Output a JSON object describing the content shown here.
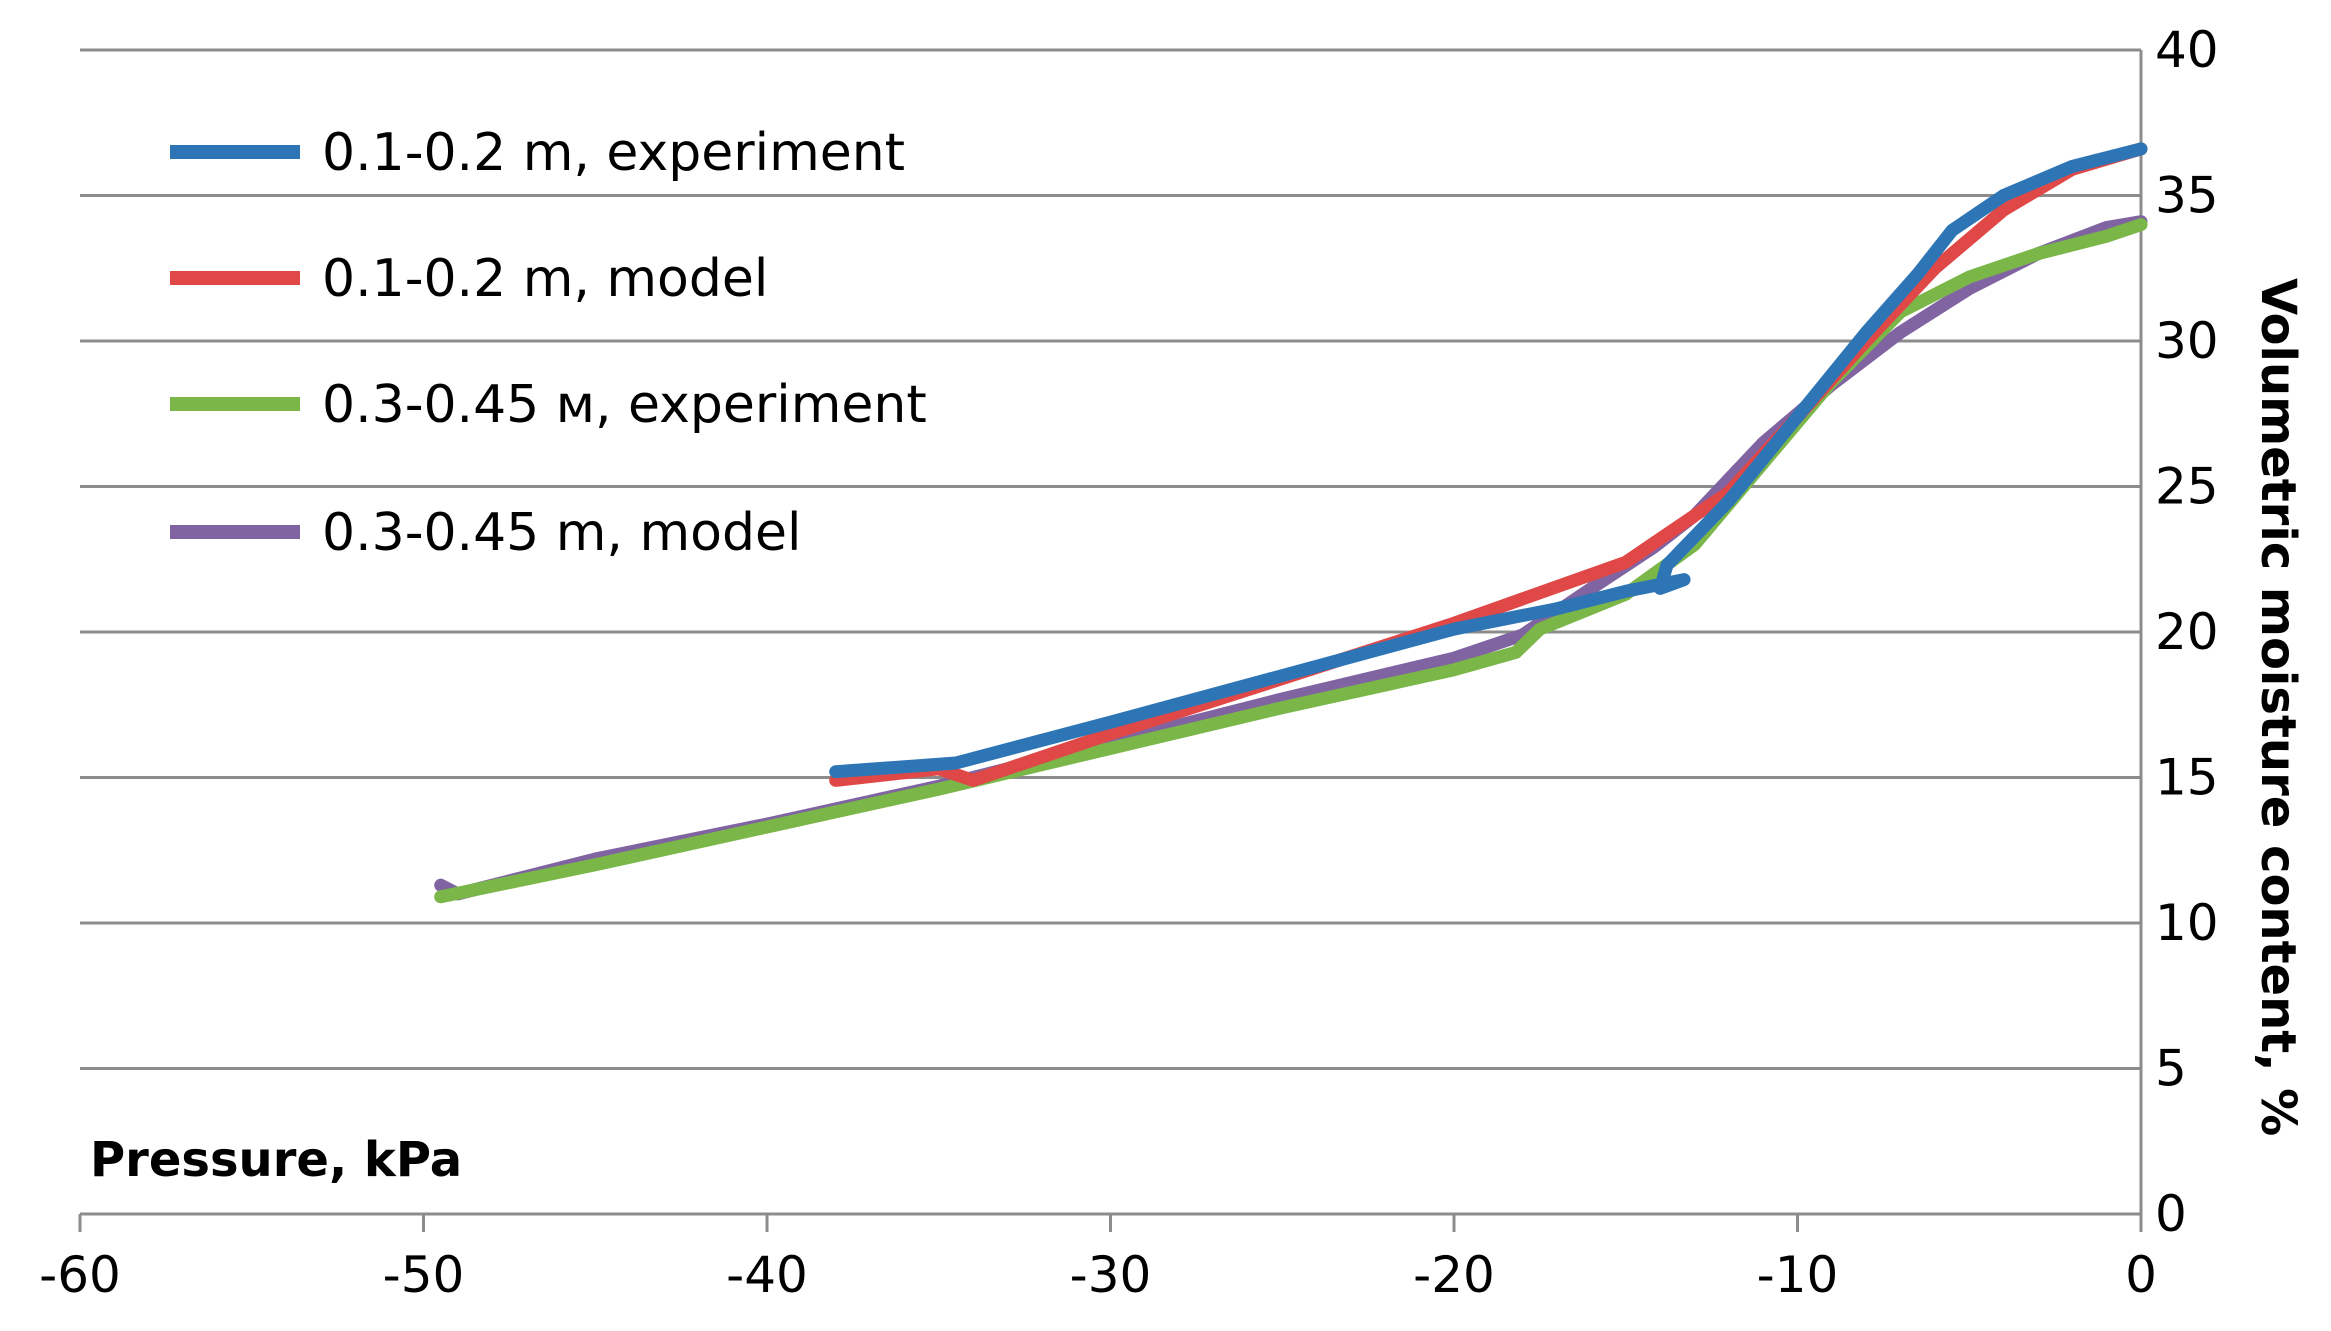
{
  "chart_data": {
    "type": "line",
    "title": "",
    "xlabel": "Pressure, kPa",
    "ylabel": "Volumetric moisture content, %",
    "xlim": [
      -60,
      0
    ],
    "ylim": [
      0,
      40
    ],
    "x_ticks": [
      -60,
      -50,
      -40,
      -30,
      -20,
      -10,
      0
    ],
    "y_ticks": [
      0,
      5,
      10,
      15,
      20,
      25,
      30,
      35,
      40
    ],
    "grid": "horizontal",
    "legend_position": "top-left",
    "series": [
      {
        "name": "0.1-0.2 m, experiment",
        "color": "#2e75b6",
        "points": [
          [
            -38,
            15.2
          ],
          [
            -34.5,
            15.5
          ],
          [
            -30,
            16.9
          ],
          [
            -25,
            18.5
          ],
          [
            -20,
            20.1
          ],
          [
            -17,
            20.8
          ],
          [
            -15,
            21.4
          ],
          [
            -13.3,
            21.8
          ],
          [
            -14,
            21.5
          ],
          [
            -13.8,
            22.3
          ],
          [
            -12,
            24.5
          ],
          [
            -10,
            27.4
          ],
          [
            -8,
            30.3
          ],
          [
            -6.5,
            32.3
          ],
          [
            -5.5,
            33.8
          ],
          [
            -4,
            35.0
          ],
          [
            -2,
            36.0
          ],
          [
            0,
            36.6
          ]
        ]
      },
      {
        "name": "0.1-0.2 m, model",
        "color": "#e04848",
        "points": [
          [
            -38,
            14.9
          ],
          [
            -35,
            15.3
          ],
          [
            -34,
            14.9
          ],
          [
            -30,
            16.5
          ],
          [
            -25,
            18.4
          ],
          [
            -20,
            20.3
          ],
          [
            -15,
            22.4
          ],
          [
            -14,
            23.2
          ],
          [
            -12,
            24.8
          ],
          [
            -10,
            27.4
          ],
          [
            -8,
            30.0
          ],
          [
            -6,
            32.5
          ],
          [
            -4,
            34.5
          ],
          [
            -2,
            35.9
          ],
          [
            0,
            36.6
          ]
        ]
      },
      {
        "name": "0.3-0.45 м, experiment",
        "color": "#7ab648",
        "points": [
          [
            -49.5,
            10.9
          ],
          [
            -45,
            12.0
          ],
          [
            -40,
            13.3
          ],
          [
            -35,
            14.6
          ],
          [
            -30,
            16.0
          ],
          [
            -25,
            17.4
          ],
          [
            -20,
            18.7
          ],
          [
            -18.2,
            19.3
          ],
          [
            -17.5,
            20.1
          ],
          [
            -15,
            21.3
          ],
          [
            -13,
            23.0
          ],
          [
            -11,
            25.8
          ],
          [
            -9,
            28.6
          ],
          [
            -7,
            31.0
          ],
          [
            -5,
            32.2
          ],
          [
            -3,
            33.0
          ],
          [
            -1,
            33.6
          ],
          [
            0,
            34.0
          ]
        ]
      },
      {
        "name": "0.3-0.45 m, model",
        "color": "#8064a2",
        "points": [
          [
            -49.5,
            11.3
          ],
          [
            -49,
            11.0
          ],
          [
            -45,
            12.2
          ],
          [
            -40,
            13.4
          ],
          [
            -35,
            14.7
          ],
          [
            -30,
            16.2
          ],
          [
            -25,
            17.7
          ],
          [
            -20,
            19.1
          ],
          [
            -18,
            19.9
          ],
          [
            -16,
            21.5
          ],
          [
            -14.2,
            22.9
          ],
          [
            -13,
            24.0
          ],
          [
            -11,
            26.5
          ],
          [
            -9,
            28.5
          ],
          [
            -7,
            30.3
          ],
          [
            -5,
            31.8
          ],
          [
            -3,
            33.0
          ],
          [
            -1,
            33.9
          ],
          [
            0,
            34.1
          ]
        ]
      }
    ]
  }
}
